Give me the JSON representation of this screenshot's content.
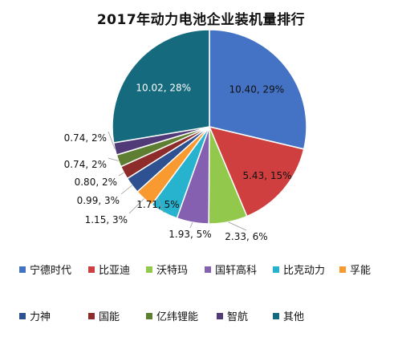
{
  "chart_data": {
    "type": "pie",
    "title": "2017年动力电池企业装机量排行",
    "categories": [
      "宁德时代",
      "比亚迪",
      "沃特玛",
      "国轩高科",
      "比克动力",
      "孚能",
      "力神",
      "国能",
      "亿纬锂能",
      "智航",
      "其他"
    ],
    "values": [
      10.4,
      5.43,
      2.33,
      1.93,
      1.71,
      1.15,
      0.99,
      0.8,
      0.74,
      0.74,
      10.02
    ],
    "data_labels": [
      "10.40, 29%",
      "5.43, 15%",
      "2.33, 6%",
      "1.93, 5%",
      "1.71, 5%",
      "1.15, 3%",
      "0.99, 3%",
      "0.80, 2%",
      "0.74, 2%",
      "0.74, 2%",
      "10.02, 28%"
    ],
    "colors": [
      "#4472C4",
      "#CF3F3F",
      "#92C84C",
      "#8660B0",
      "#27B2CE",
      "#F89A2F",
      "#2E5192",
      "#8E2B2B",
      "#5E7F32",
      "#513A78",
      "#156A7E"
    ],
    "legend_position": "bottom"
  }
}
